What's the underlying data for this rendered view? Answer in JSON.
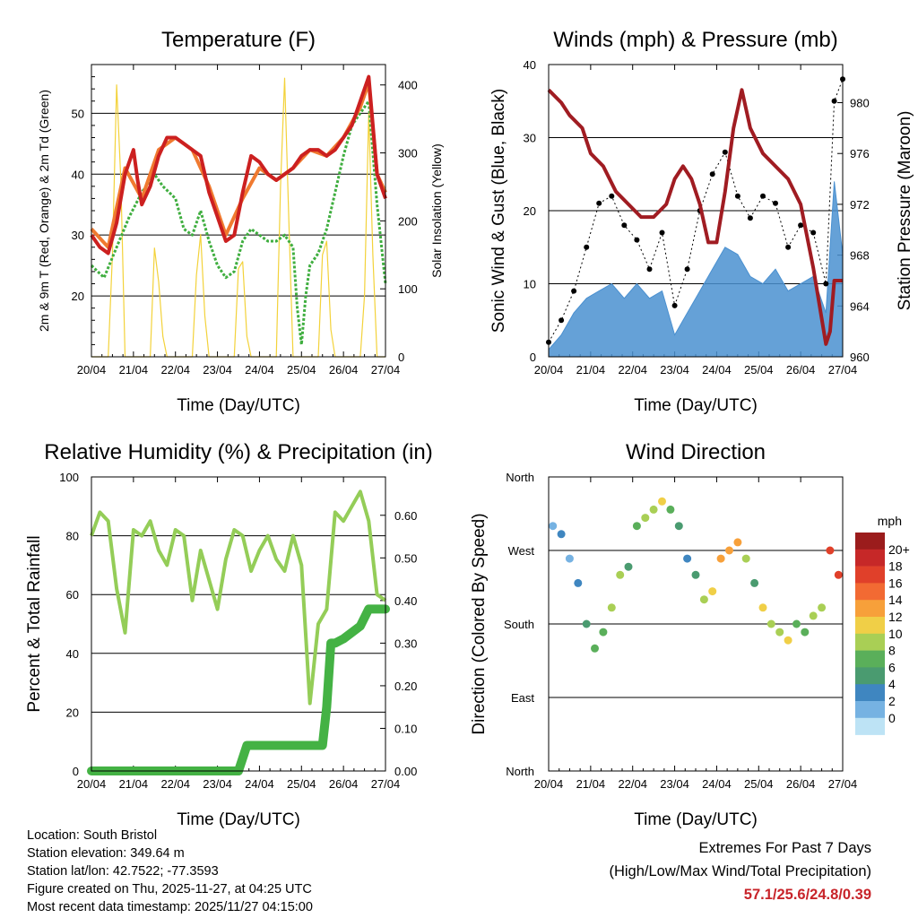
{
  "chart_data": [
    {
      "type": "line",
      "title": "Temperature (F)",
      "xlabel": "Time (Day/UTC)",
      "ylabel": "2m & 9m T (Red, Orange) & 2m Td (Green)",
      "ylabel_right": "Solar Insolation (Yellow)",
      "x_ticks": [
        "20/04",
        "21/04",
        "22/04",
        "23/04",
        "24/04",
        "25/04",
        "26/04",
        "27/04"
      ],
      "xlim": [
        0,
        7
      ],
      "ylim": [
        10,
        58
      ],
      "y_ticks": [
        20,
        30,
        40,
        50
      ],
      "ylim_right": [
        0,
        430
      ],
      "y_ticks_right": [
        0,
        100,
        200,
        300,
        400
      ],
      "series": [
        {
          "name": "2m T",
          "color": "#cc2020",
          "x": [
            0,
            0.2,
            0.4,
            0.6,
            0.8,
            1.0,
            1.1,
            1.2,
            1.4,
            1.6,
            1.8,
            2.0,
            2.2,
            2.4,
            2.6,
            2.7,
            2.8,
            3.0,
            3.2,
            3.4,
            3.6,
            3.8,
            4.0,
            4.2,
            4.4,
            4.6,
            4.8,
            5.0,
            5.2,
            5.4,
            5.6,
            5.8,
            6.0,
            6.2,
            6.4,
            6.6,
            6.8,
            7.0
          ],
          "values": [
            30,
            28,
            27,
            32,
            40,
            44,
            39,
            35,
            38,
            43,
            46,
            46,
            45,
            44,
            43,
            40,
            37,
            33,
            29,
            30,
            37,
            43,
            42,
            40,
            39,
            40,
            41,
            43,
            44,
            44,
            43,
            44,
            46,
            48,
            52,
            56,
            40,
            36
          ]
        },
        {
          "name": "9m T",
          "color": "#f07a30",
          "x": [
            0,
            0.4,
            0.8,
            1.2,
            1.6,
            2.0,
            2.4,
            2.8,
            3.2,
            3.6,
            4.0,
            4.4,
            4.8,
            5.2,
            5.6,
            6.0,
            6.4,
            6.6,
            6.8,
            7.0
          ],
          "values": [
            31,
            28,
            41,
            36,
            44,
            46,
            44,
            38,
            30,
            36,
            41,
            39,
            41,
            44,
            43,
            46,
            51,
            55,
            40,
            37
          ]
        },
        {
          "name": "2m Td",
          "color": "#3fae3f",
          "x": [
            0,
            0.3,
            0.6,
            0.9,
            1.2,
            1.5,
            1.7,
            2.0,
            2.2,
            2.4,
            2.6,
            2.8,
            3.0,
            3.2,
            3.4,
            3.6,
            3.8,
            4.0,
            4.2,
            4.4,
            4.6,
            4.8,
            4.9,
            5.0,
            5.1,
            5.2,
            5.4,
            5.6,
            5.8,
            6.0,
            6.2,
            6.4,
            6.6,
            6.8,
            7.0
          ],
          "values": [
            25,
            23,
            28,
            33,
            37,
            40,
            38,
            36,
            31,
            30,
            34,
            29,
            25,
            23,
            24,
            29,
            31,
            30,
            29,
            29,
            30,
            28,
            18,
            12,
            20,
            25,
            27,
            31,
            37,
            43,
            48,
            50,
            52,
            35,
            22
          ]
        },
        {
          "name": "Solar Insolation",
          "color": "#f3d23a",
          "axis": "right",
          "x": [
            0,
            0.4,
            0.5,
            0.6,
            0.7,
            0.8,
            1.0,
            1.4,
            1.5,
            1.6,
            1.7,
            1.8,
            2.0,
            2.4,
            2.5,
            2.6,
            2.7,
            2.8,
            3.0,
            3.4,
            3.5,
            3.6,
            3.7,
            3.8,
            4.0,
            4.4,
            4.5,
            4.6,
            4.7,
            4.8,
            5.0,
            5.4,
            5.5,
            5.6,
            5.7,
            5.8,
            6.0,
            6.4,
            6.5,
            6.6,
            6.7,
            6.8,
            7.0
          ],
          "values": [
            0,
            0,
            150,
            400,
            260,
            0,
            0,
            0,
            160,
            110,
            30,
            0,
            0,
            0,
            120,
            180,
            60,
            0,
            0,
            0,
            130,
            140,
            30,
            0,
            0,
            0,
            250,
            410,
            200,
            0,
            0,
            0,
            150,
            170,
            40,
            0,
            0,
            0,
            90,
            360,
            150,
            0,
            0
          ]
        }
      ]
    },
    {
      "type": "line",
      "title": "Winds (mph) & Pressure (mb)",
      "xlabel": "Time (Day/UTC)",
      "ylabel": "Sonic Wind & Gust (Blue, Black)",
      "ylabel_right": "Station Pressure (Maroon)",
      "x_ticks": [
        "20/04",
        "21/04",
        "22/04",
        "23/04",
        "24/04",
        "25/04",
        "26/04",
        "27/04"
      ],
      "xlim": [
        0,
        7
      ],
      "ylim": [
        0,
        40
      ],
      "y_ticks": [
        0,
        10,
        20,
        30,
        40
      ],
      "ylim_right": [
        960,
        983
      ],
      "y_ticks_right": [
        960,
        964,
        968,
        972,
        976,
        980
      ],
      "series": [
        {
          "name": "Sonic Wind",
          "color": "#4a90d0",
          "x": [
            0,
            0.3,
            0.6,
            0.9,
            1.2,
            1.5,
            1.8,
            2.1,
            2.4,
            2.7,
            3.0,
            3.3,
            3.6,
            3.9,
            4.2,
            4.5,
            4.8,
            5.1,
            5.4,
            5.7,
            6.0,
            6.3,
            6.6,
            6.8,
            7.0
          ],
          "values": [
            1,
            3,
            6,
            8,
            9,
            10,
            8,
            10,
            8,
            9,
            3,
            6,
            9,
            12,
            15,
            14,
            11,
            10,
            12,
            9,
            10,
            11,
            6,
            24,
            14
          ]
        },
        {
          "name": "Gust",
          "color": "#000000",
          "x": [
            0,
            0.3,
            0.6,
            0.9,
            1.2,
            1.5,
            1.8,
            2.1,
            2.4,
            2.7,
            3.0,
            3.3,
            3.6,
            3.9,
            4.2,
            4.5,
            4.8,
            5.1,
            5.4,
            5.7,
            6.0,
            6.3,
            6.6,
            6.8,
            7.0
          ],
          "values": [
            2,
            5,
            9,
            15,
            21,
            22,
            18,
            16,
            12,
            17,
            7,
            12,
            20,
            25,
            28,
            22,
            19,
            22,
            21,
            15,
            18,
            17,
            10,
            35,
            38
          ]
        },
        {
          "name": "Station Pressure",
          "color": "#a01c22",
          "axis": "right",
          "x": [
            0,
            0.3,
            0.5,
            0.8,
            1.0,
            1.3,
            1.6,
            1.9,
            2.2,
            2.5,
            2.8,
            3.0,
            3.2,
            3.4,
            3.6,
            3.8,
            4.0,
            4.2,
            4.4,
            4.6,
            4.8,
            5.1,
            5.4,
            5.7,
            6.0,
            6.3,
            6.5,
            6.6,
            6.7,
            6.8,
            7.0
          ],
          "values": [
            981,
            980,
            979,
            978,
            976,
            975,
            973,
            972,
            971,
            971,
            972,
            974,
            975,
            974,
            972,
            969,
            969,
            973,
            978,
            981,
            978,
            976,
            975,
            974,
            972,
            967,
            963,
            961,
            962,
            966,
            966
          ]
        }
      ]
    },
    {
      "type": "line",
      "title": "Relative Humidity (%) & Precipitation (in)",
      "xlabel": "Time (Day/UTC)",
      "ylabel": "Percent & Total Rainfall",
      "x_ticks": [
        "20/04",
        "21/04",
        "22/04",
        "23/04",
        "24/04",
        "25/04",
        "26/04",
        "27/04"
      ],
      "xlim": [
        0,
        7
      ],
      "ylim": [
        0,
        100
      ],
      "y_ticks": [
        0,
        20,
        40,
        60,
        80,
        100
      ],
      "ylim_right": [
        0,
        0.69
      ],
      "y_ticks_right": [
        "0.00",
        "0.10",
        "0.20",
        "0.30",
        "0.40",
        "0.50",
        "0.60"
      ],
      "series": [
        {
          "name": "Relative Humidity",
          "color": "#94cd58",
          "x": [
            0,
            0.2,
            0.4,
            0.6,
            0.8,
            1.0,
            1.2,
            1.4,
            1.6,
            1.8,
            2.0,
            2.2,
            2.4,
            2.6,
            2.8,
            3.0,
            3.2,
            3.4,
            3.6,
            3.8,
            4.0,
            4.2,
            4.4,
            4.6,
            4.8,
            5.0,
            5.2,
            5.4,
            5.6,
            5.8,
            6.0,
            6.2,
            6.4,
            6.6,
            6.8,
            7.0
          ],
          "values": [
            80,
            88,
            85,
            62,
            47,
            82,
            80,
            85,
            75,
            70,
            82,
            80,
            58,
            75,
            65,
            55,
            72,
            82,
            80,
            68,
            75,
            80,
            72,
            68,
            80,
            70,
            23,
            50,
            55,
            88,
            85,
            90,
            95,
            85,
            60,
            58
          ]
        },
        {
          "name": "Total Rainfall",
          "color": "#44b244",
          "axis": "right",
          "x": [
            0,
            1,
            2,
            3,
            3.5,
            3.7,
            4.0,
            4.5,
            5.0,
            5.5,
            5.6,
            5.7,
            5.8,
            6.0,
            6.4,
            6.6,
            6.8,
            7.0
          ],
          "values": [
            0,
            0,
            0,
            0,
            0,
            0.06,
            0.06,
            0.06,
            0.06,
            0.06,
            0.15,
            0.3,
            0.3,
            0.31,
            0.34,
            0.38,
            0.38,
            0.38
          ]
        }
      ]
    },
    {
      "type": "scatter",
      "title": "Wind Direction",
      "xlabel": "Time (Day/UTC)",
      "ylabel": "Direction (Colored By Speed)",
      "x_ticks": [
        "20/04",
        "21/04",
        "22/04",
        "23/04",
        "24/04",
        "25/04",
        "26/04",
        "27/04"
      ],
      "xlim": [
        0,
        7
      ],
      "ylim": [
        0,
        360
      ],
      "y_ticks": [
        "North",
        "East",
        "South",
        "West",
        "North"
      ],
      "legend_title": "mph",
      "legend_labels": [
        "20+",
        "18",
        "16",
        "14",
        "12",
        "10",
        "8",
        "6",
        "4",
        "2",
        "0"
      ],
      "legend_colors": [
        "#9b1c1c",
        "#c62828",
        "#e0402a",
        "#f26a33",
        "#f7a03a",
        "#f0cf47",
        "#a9cf55",
        "#5aaf5a",
        "#4a9b70",
        "#3f86c0",
        "#76b2e2",
        "#bde3f5"
      ],
      "series": [
        {
          "name": "Direction",
          "x": [
            0.1,
            0.3,
            0.5,
            0.7,
            0.9,
            1.1,
            1.3,
            1.5,
            1.7,
            1.9,
            2.1,
            2.3,
            2.5,
            2.7,
            2.9,
            3.1,
            3.3,
            3.5,
            3.7,
            3.9,
            4.1,
            4.3,
            4.5,
            4.7,
            4.9,
            5.1,
            5.3,
            5.5,
            5.7,
            5.9,
            6.1,
            6.3,
            6.5,
            6.7,
            6.9
          ],
          "values": [
            300,
            290,
            260,
            230,
            180,
            150,
            170,
            200,
            240,
            250,
            300,
            310,
            320,
            330,
            320,
            300,
            260,
            240,
            210,
            220,
            260,
            270,
            280,
            260,
            230,
            200,
            180,
            170,
            160,
            180,
            170,
            190,
            200,
            270,
            240
          ],
          "speeds": [
            2,
            3,
            2,
            4,
            6,
            7,
            8,
            9,
            10,
            6,
            8,
            9,
            10,
            11,
            7,
            5,
            4,
            6,
            10,
            12,
            13,
            14,
            13,
            10,
            6,
            12,
            9,
            10,
            11,
            8,
            7,
            9,
            10,
            18,
            17
          ]
        }
      ]
    }
  ],
  "info": {
    "location": "Location: South Bristol",
    "elevation": "Station elevation: 349.64 m",
    "latlon": "Station lat/lon: 42.7522; -77.3593",
    "created": "Figure created on Thu, 2025-11-27, at 04:25 UTC",
    "timestamp": "Most recent data timestamp: 2025/11/27 04:15:00"
  },
  "extremes": {
    "title": "Extremes For Past 7 Days",
    "subtitle": "(High/Low/Max Wind/Total Precipitation)",
    "values": "57.1/25.6/24.8/0.39"
  }
}
